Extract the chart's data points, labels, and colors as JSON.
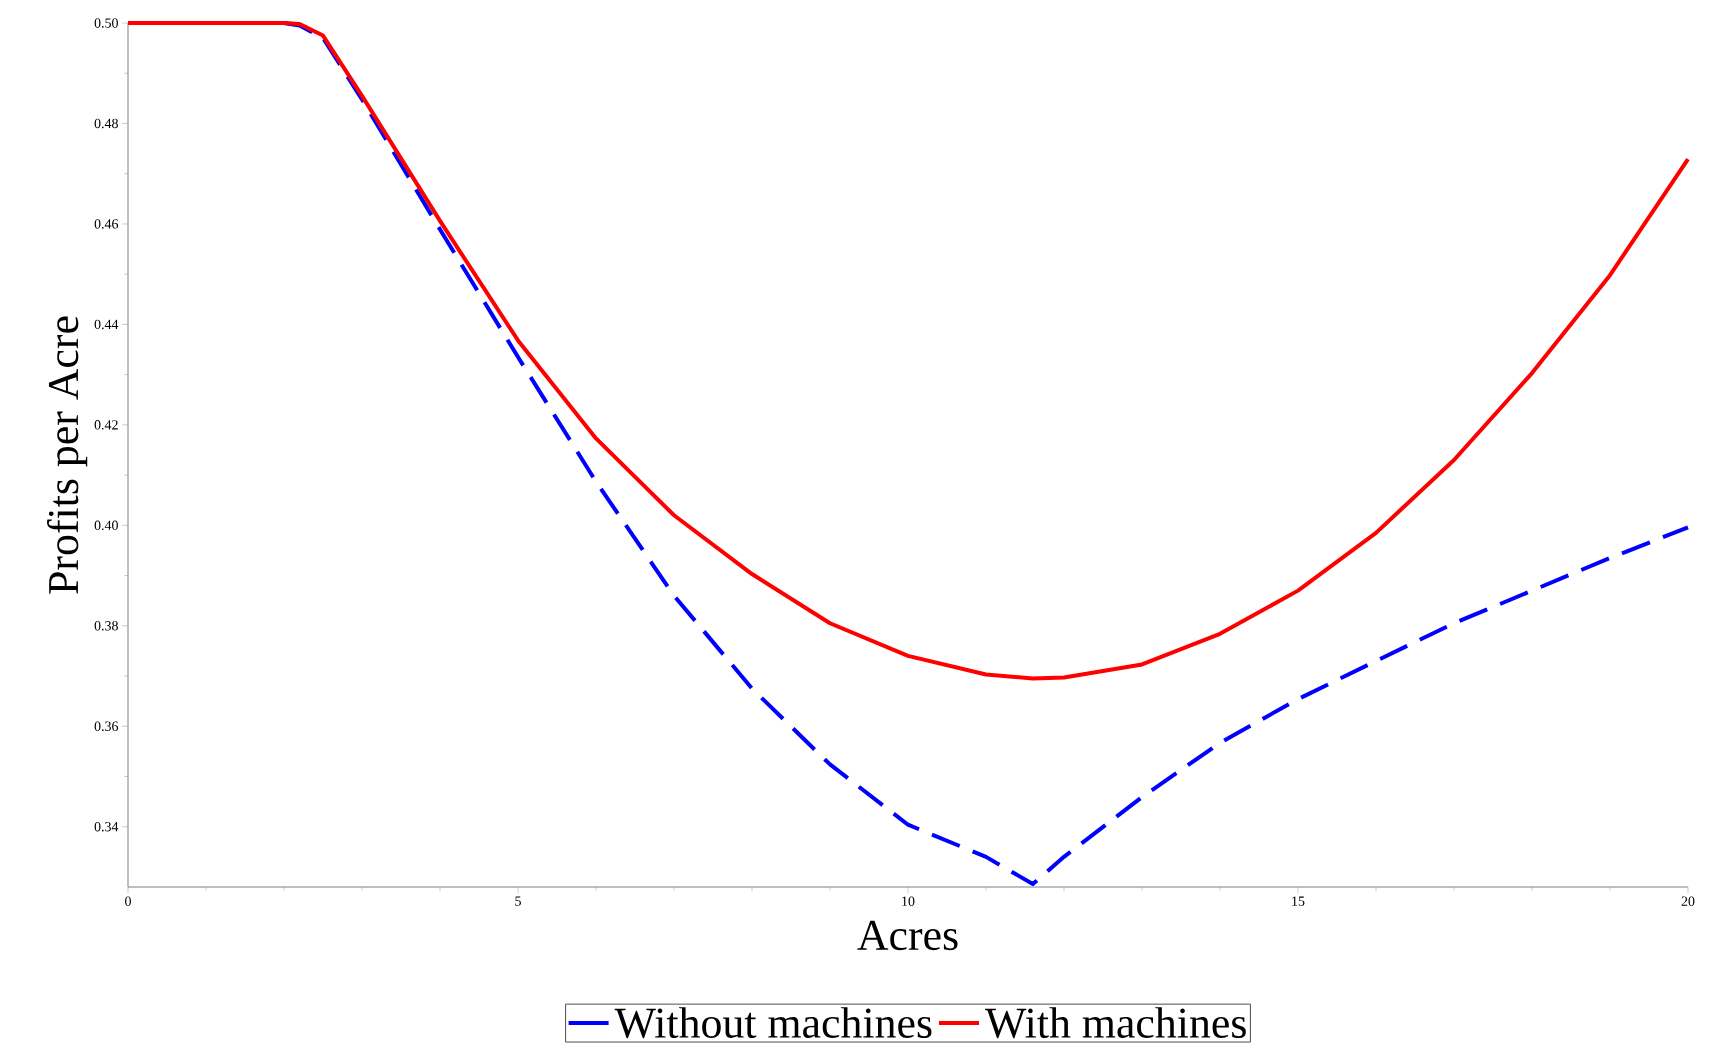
{
  "chart_data": {
    "type": "line",
    "xlabel": "Acres",
    "ylabel": "Profits per Acre",
    "xlim": [
      0,
      20
    ],
    "ylim": [
      0.328,
      0.5
    ],
    "xticks": [
      0,
      5,
      10,
      15,
      20
    ],
    "yticks": [
      0.34,
      0.36,
      0.38,
      {
        "value": 0.4,
        "label": "0.40"
      },
      0.42,
      0.44,
      0.46,
      0.48,
      {
        "value": 0.5,
        "label": "0.50"
      }
    ],
    "legend": "bottom",
    "grid": false,
    "marker": "none",
    "series": [
      {
        "name": "Without machines",
        "color": "#0000ff",
        "line_style": "dashed",
        "x": [
          2,
          2.2,
          2.5,
          3,
          4,
          5,
          6,
          7,
          8,
          9,
          10,
          11,
          11.6,
          12,
          13,
          14,
          15,
          16,
          17,
          18,
          19,
          20
        ],
        "values": [
          0.5,
          0.4995,
          0.497,
          0.4848,
          0.4589,
          0.4335,
          0.4087,
          0.386,
          0.3675,
          0.3524,
          0.3404,
          0.334,
          0.3286,
          0.334,
          0.3459,
          0.3567,
          0.3654,
          0.373,
          0.3805,
          0.387,
          0.3935,
          0.3996
        ]
      },
      {
        "name": "With machines",
        "color": "#ff0000",
        "line_style": "solid",
        "x": [
          0,
          1,
          2,
          2.2,
          2.5,
          3,
          4,
          5,
          6,
          7,
          8,
          9,
          10,
          11,
          11.6,
          12,
          13,
          14,
          15,
          16,
          17,
          18,
          19,
          20
        ],
        "values": [
          0.5,
          0.5,
          0.5,
          0.4998,
          0.4975,
          0.4855,
          0.4606,
          0.4368,
          0.4173,
          0.402,
          0.3903,
          0.3805,
          0.374,
          0.3703,
          0.3695,
          0.3697,
          0.3723,
          0.3784,
          0.387,
          0.3985,
          0.413,
          0.4303,
          0.4498,
          0.4729
        ]
      }
    ]
  }
}
